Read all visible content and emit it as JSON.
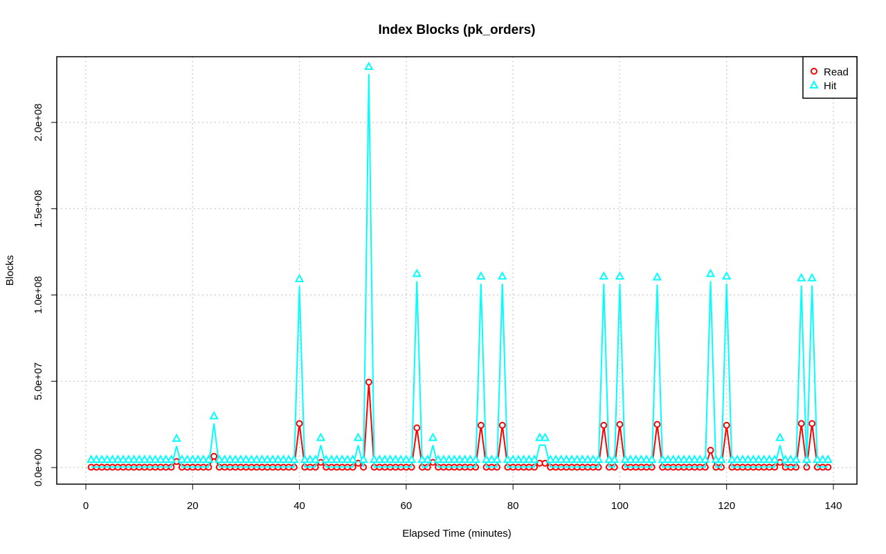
{
  "chart_data": {
    "type": "line",
    "title": "Index Blocks (pk_orders)",
    "xlabel": "Elapsed Time (minutes)",
    "ylabel": "Blocks",
    "xlim": [
      0,
      140
    ],
    "ylim": [
      0,
      230000000
    ],
    "x_ticks": [
      0,
      20,
      40,
      60,
      80,
      100,
      120,
      140
    ],
    "x_tick_labels": [
      "0",
      "20",
      "40",
      "60",
      "80",
      "100",
      "120",
      "140"
    ],
    "y_ticks": [
      0,
      50000000,
      100000000,
      150000000,
      200000000
    ],
    "y_tick_labels": [
      "0.0e+00",
      "5.0e+07",
      "1.0e+08",
      "1.5e+08",
      "2.0e+08"
    ],
    "grid": true,
    "legend_position": "top-right",
    "x_start": 1,
    "x_end": 139,
    "series": [
      {
        "name": "Read",
        "color": "#ff0000",
        "marker": "circle",
        "baseline": 200000,
        "points": [
          [
            17,
            3500000
          ],
          [
            24,
            6500000
          ],
          [
            40,
            25500000
          ],
          [
            44,
            3000000
          ],
          [
            51,
            2500000
          ],
          [
            53,
            49500000
          ],
          [
            62,
            23000000
          ],
          [
            65,
            3000000
          ],
          [
            74,
            24500000
          ],
          [
            78,
            24500000
          ],
          [
            85,
            2500000
          ],
          [
            86,
            2500000
          ],
          [
            97,
            24500000
          ],
          [
            100,
            25000000
          ],
          [
            107,
            25000000
          ],
          [
            117,
            10000000
          ],
          [
            120,
            24500000
          ],
          [
            130,
            3000000
          ],
          [
            134,
            25500000
          ],
          [
            136,
            25500000
          ]
        ]
      },
      {
        "name": "Hit",
        "color": "#00ffff",
        "marker": "triangle",
        "baseline": 300000,
        "points": [
          [
            17,
            12500000
          ],
          [
            24,
            25500000
          ],
          [
            40,
            105000000
          ],
          [
            44,
            13000000
          ],
          [
            51,
            13000000
          ],
          [
            53,
            228000000
          ],
          [
            62,
            108000000
          ],
          [
            65,
            13000000
          ],
          [
            74,
            106500000
          ],
          [
            78,
            106500000
          ],
          [
            85,
            13000000
          ],
          [
            86,
            13000000
          ],
          [
            97,
            106500000
          ],
          [
            100,
            106500000
          ],
          [
            107,
            106000000
          ],
          [
            117,
            108000000
          ],
          [
            120,
            106500000
          ],
          [
            130,
            13000000
          ],
          [
            134,
            105500000
          ],
          [
            136,
            105500000
          ]
        ]
      }
    ]
  }
}
